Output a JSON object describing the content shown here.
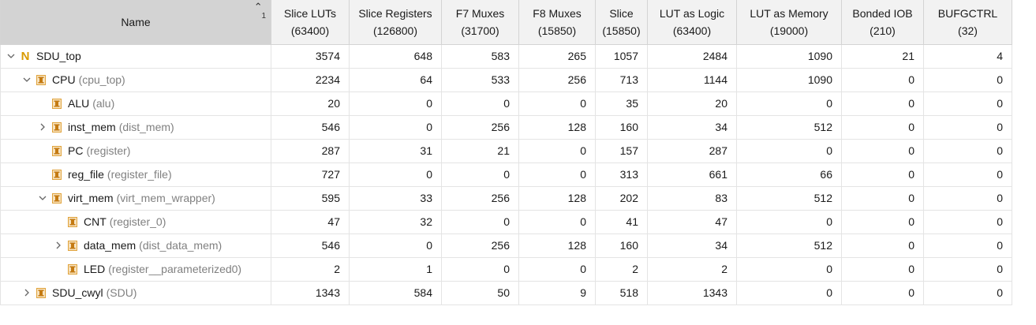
{
  "header": {
    "name_label": "Name",
    "sort_order": "1",
    "columns": [
      {
        "title": "Slice LUTs",
        "capacity": "(63400)"
      },
      {
        "title": "Slice Registers",
        "capacity": "(126800)"
      },
      {
        "title": "F7 Muxes",
        "capacity": "(31700)"
      },
      {
        "title": "F8 Muxes",
        "capacity": "(15850)"
      },
      {
        "title": "Slice",
        "capacity": "(15850)"
      },
      {
        "title": "LUT as Logic",
        "capacity": "(63400)"
      },
      {
        "title": "LUT as Memory",
        "capacity": "(19000)"
      },
      {
        "title": "Bonded IOB",
        "capacity": "(210)"
      },
      {
        "title": "BUFGCTRL",
        "capacity": "(32)"
      }
    ]
  },
  "rows": [
    {
      "instance": "SDU_top",
      "module": "",
      "level": 0,
      "expander": "expanded",
      "icon": "top-module-icon",
      "values": [
        "3574",
        "648",
        "583",
        "265",
        "1057",
        "2484",
        "1090",
        "21",
        "4"
      ]
    },
    {
      "instance": "CPU",
      "module": "(cpu_top)",
      "level": 1,
      "expander": "expanded",
      "icon": "instance-icon",
      "values": [
        "2234",
        "64",
        "533",
        "256",
        "713",
        "1144",
        "1090",
        "0",
        "0"
      ]
    },
    {
      "instance": "ALU",
      "module": "(alu)",
      "level": 2,
      "expander": "none",
      "icon": "instance-icon",
      "values": [
        "20",
        "0",
        "0",
        "0",
        "35",
        "20",
        "0",
        "0",
        "0"
      ]
    },
    {
      "instance": "inst_mem",
      "module": "(dist_mem)",
      "level": 2,
      "expander": "collapsed",
      "icon": "instance-icon",
      "values": [
        "546",
        "0",
        "256",
        "128",
        "160",
        "34",
        "512",
        "0",
        "0"
      ]
    },
    {
      "instance": "PC",
      "module": "(register)",
      "level": 2,
      "expander": "none",
      "icon": "instance-icon",
      "values": [
        "287",
        "31",
        "21",
        "0",
        "157",
        "287",
        "0",
        "0",
        "0"
      ]
    },
    {
      "instance": "reg_file",
      "module": "(register_file)",
      "level": 2,
      "expander": "none",
      "icon": "instance-icon",
      "values": [
        "727",
        "0",
        "0",
        "0",
        "313",
        "661",
        "66",
        "0",
        "0"
      ]
    },
    {
      "instance": "virt_mem",
      "module": "(virt_mem_wrapper)",
      "level": 2,
      "expander": "expanded",
      "icon": "instance-icon",
      "values": [
        "595",
        "33",
        "256",
        "128",
        "202",
        "83",
        "512",
        "0",
        "0"
      ]
    },
    {
      "instance": "CNT",
      "module": "(register_0)",
      "level": 3,
      "expander": "none",
      "icon": "instance-icon",
      "values": [
        "47",
        "32",
        "0",
        "0",
        "41",
        "47",
        "0",
        "0",
        "0"
      ]
    },
    {
      "instance": "data_mem",
      "module": "(dist_data_mem)",
      "level": 3,
      "expander": "collapsed",
      "icon": "instance-icon",
      "values": [
        "546",
        "0",
        "256",
        "128",
        "160",
        "34",
        "512",
        "0",
        "0"
      ]
    },
    {
      "instance": "LED",
      "module": "(register__parameterized0)",
      "level": 3,
      "expander": "none",
      "icon": "instance-icon",
      "values": [
        "2",
        "1",
        "0",
        "0",
        "2",
        "2",
        "0",
        "0",
        "0"
      ]
    },
    {
      "instance": "SDU_cwyl",
      "module": "(SDU)",
      "level": 1,
      "expander": "collapsed",
      "icon": "instance-icon",
      "values": [
        "1343",
        "584",
        "50",
        "9",
        "518",
        "1343",
        "0",
        "0",
        "0"
      ]
    }
  ],
  "colors": {
    "header_bg": "#f2f2f2",
    "sorted_header_bg": "#d3d3d3",
    "top_icon": "#d99a00",
    "instance_icon": "#e0a23a",
    "module_text": "#808080"
  }
}
